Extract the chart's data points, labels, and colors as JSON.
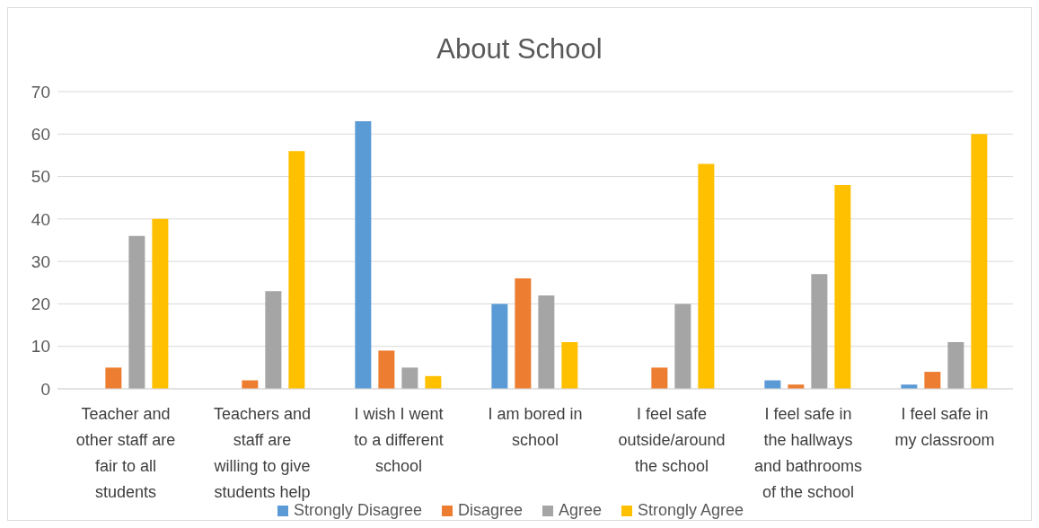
{
  "chart_data": {
    "type": "bar",
    "title": "About School",
    "categories": [
      "Teacher and other staff are fair to all students",
      "Teachers and staff are willing to give students help",
      "I wish I went to a different school",
      "I am bored in school",
      "I feel safe outside/around the school",
      "I feel safe in the hallways and bathrooms of the school",
      "I feel safe in my classroom"
    ],
    "series": [
      {
        "name": "Strongly Disagree",
        "color": "#5b9bd5",
        "values": [
          0,
          0,
          63,
          20,
          0,
          2,
          1
        ]
      },
      {
        "name": "Disagree",
        "color": "#ed7d31",
        "values": [
          5,
          2,
          9,
          26,
          5,
          1,
          4
        ]
      },
      {
        "name": "Agree",
        "color": "#a5a5a5",
        "values": [
          36,
          23,
          5,
          22,
          20,
          27,
          11
        ]
      },
      {
        "name": "Strongly Agree",
        "color": "#ffc000",
        "values": [
          40,
          56,
          3,
          11,
          53,
          48,
          60
        ]
      }
    ],
    "ylim": [
      0,
      70
    ],
    "yticks": [
      0,
      10,
      20,
      30,
      40,
      50,
      60,
      70
    ],
    "grid": "y",
    "legend": "bottom"
  }
}
